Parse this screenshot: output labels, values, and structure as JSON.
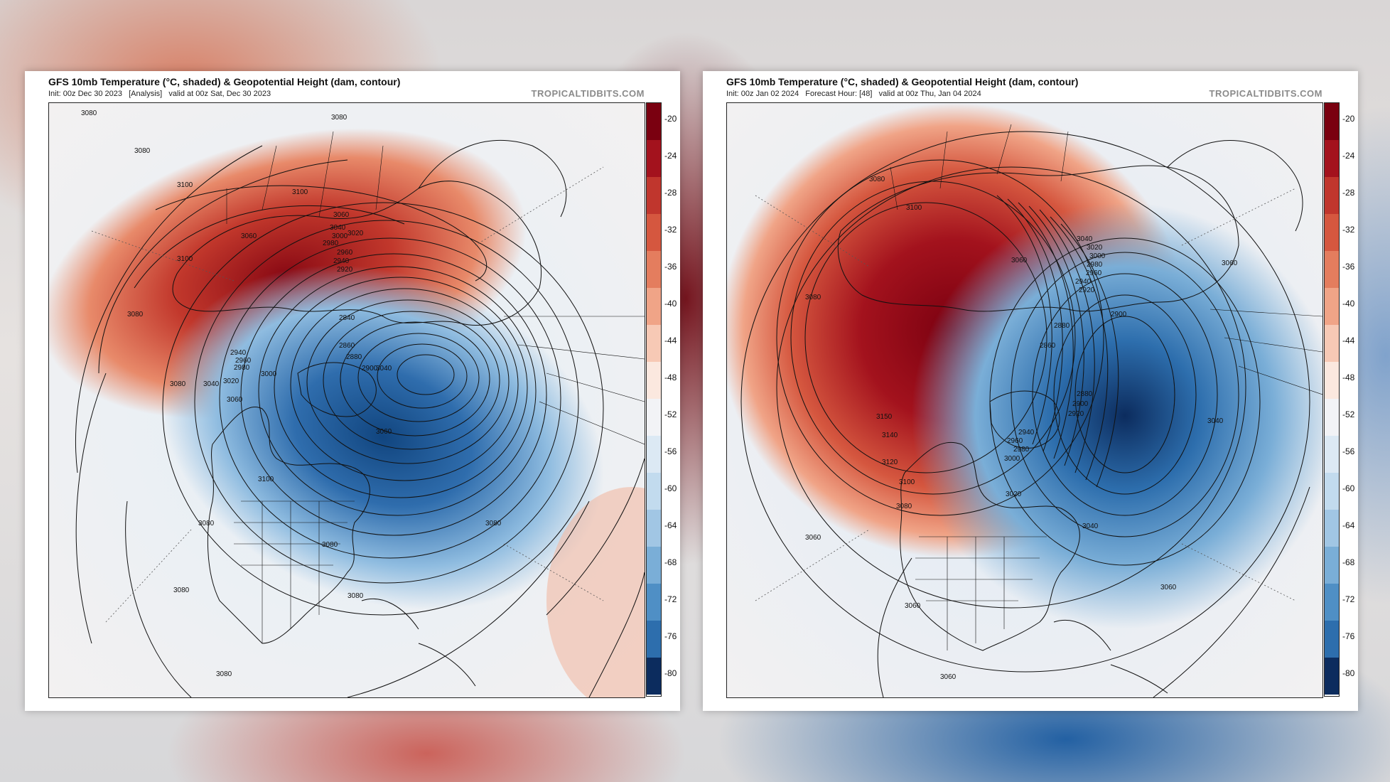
{
  "panels": [
    {
      "title": "GFS 10mb Temperature (°C, shaded) & Geopotential Height (dam, contour)",
      "subtitle": "Init: 00z Dec 30 2023   [Analysis]   valid at 00z Sat, Dec 30 2023",
      "credit": "TROPICALTIDBITS.COM",
      "contour_labels": [
        "3080",
        "3080",
        "3080",
        "3100",
        "3100",
        "3100",
        "3060",
        "3060",
        "3040",
        "3020",
        "3000",
        "2980",
        "2960",
        "2940",
        "2920",
        "2900",
        "2880",
        "2860",
        "2840",
        "2960",
        "2940",
        "2980",
        "3000",
        "3020",
        "3040",
        "3060",
        "3080",
        "3080",
        "3100",
        "3080",
        "3080",
        "3080",
        "3080",
        "3080",
        "3080",
        "3040",
        "3060"
      ]
    },
    {
      "title": "GFS 10mb Temperature (°C, shaded) & Geopotential Height (dam, contour)",
      "subtitle": "Init: 00z Jan 02 2024   Forecast Hour: [48]   valid at 00z Thu, Jan 04 2024",
      "credit": "TROPICALTIDBITS.COM",
      "contour_labels": [
        "3080",
        "3100",
        "3080",
        "3060",
        "3040",
        "3020",
        "3000",
        "2980",
        "2960",
        "2940",
        "2920",
        "2900",
        "2880",
        "2860",
        "3140",
        "3150",
        "3120",
        "3100",
        "3080",
        "2880",
        "2900",
        "2920",
        "2940",
        "2960",
        "2980",
        "3000",
        "3020",
        "3040",
        "3060",
        "3060",
        "3060",
        "3060",
        "3060",
        "3040"
      ]
    }
  ],
  "colorbar": {
    "ticks": [
      "-20",
      "-24",
      "-28",
      "-32",
      "-36",
      "-40",
      "-44",
      "-48",
      "-52",
      "-56",
      "-60",
      "-64",
      "-68",
      "-72",
      "-76",
      "-80"
    ],
    "colors": [
      "#7a0010",
      "#a3121d",
      "#c0362d",
      "#d5573f",
      "#e47d5e",
      "#f0a487",
      "#f7c9b5",
      "#fbe8df",
      "#f2f3f6",
      "#dce9f4",
      "#c2dbee",
      "#a1c6e4",
      "#7aaed7",
      "#4f8fc5",
      "#2d6ead",
      "#17498a",
      "#0c2c5e"
    ]
  },
  "colors": {
    "warm_core": "#8a0a14",
    "warm": "#d45a44",
    "cold_core": "#11457f",
    "cold": "#5b95cb",
    "neutral": "#eef1f5"
  }
}
